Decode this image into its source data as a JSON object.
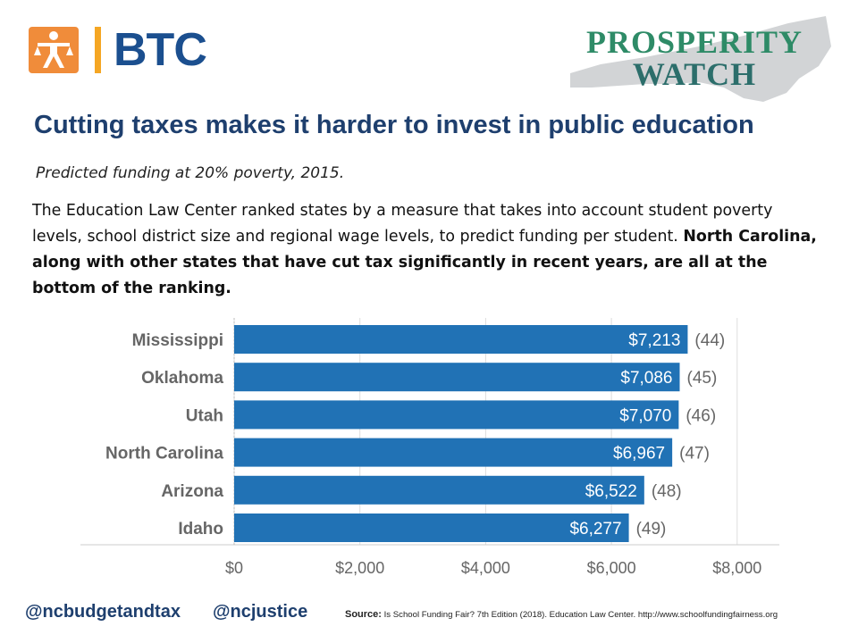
{
  "header": {
    "btc_logo_text": "BTC",
    "pw_line1": "PROSPERITY",
    "pw_line2": "WATCH"
  },
  "title": "Cutting taxes makes it harder to invest in public education",
  "subtitle": "Predicted funding at 20% poverty, 2015.",
  "body_plain": "The Education Law Center ranked states by a measure that takes into account student poverty levels, school district size and regional wage levels, to predict funding per student. ",
  "body_bold": "North Carolina, along with other states that have cut tax significantly in recent years, are all at the bottom of the ranking.",
  "chart_data": {
    "type": "bar",
    "orientation": "horizontal",
    "categories": [
      "Mississippi",
      "Oklahoma",
      "Utah",
      "North Carolina",
      "Arizona",
      "Idaho"
    ],
    "values": [
      7213,
      7086,
      7070,
      6967,
      6522,
      6277
    ],
    "value_labels": [
      "$7,213",
      "$7,086",
      "$7,070",
      "$6,967",
      "$6,522",
      "$6,277"
    ],
    "rank_labels": [
      "(44)",
      "(45)",
      "(46)",
      "(47)",
      "(48)",
      "(49)"
    ],
    "xlim": [
      0,
      8000
    ],
    "x_ticks": [
      0,
      2000,
      4000,
      6000,
      8000
    ],
    "x_tick_labels": [
      "$0",
      "$2,000",
      "$4,000",
      "$6,000",
      "$8,000"
    ],
    "grid": true,
    "colors": {
      "bar": "#2172b5",
      "grid": "#dddddd",
      "label": "#666666"
    }
  },
  "footer": {
    "handle1": "@ncbudgetandtax",
    "handle2": "@ncjustice",
    "source_label": "Source:",
    "source_text": " Is School Funding Fair? 7th Edition (2018). Education Law Center. http://www.schoolfundingfairness.org"
  }
}
